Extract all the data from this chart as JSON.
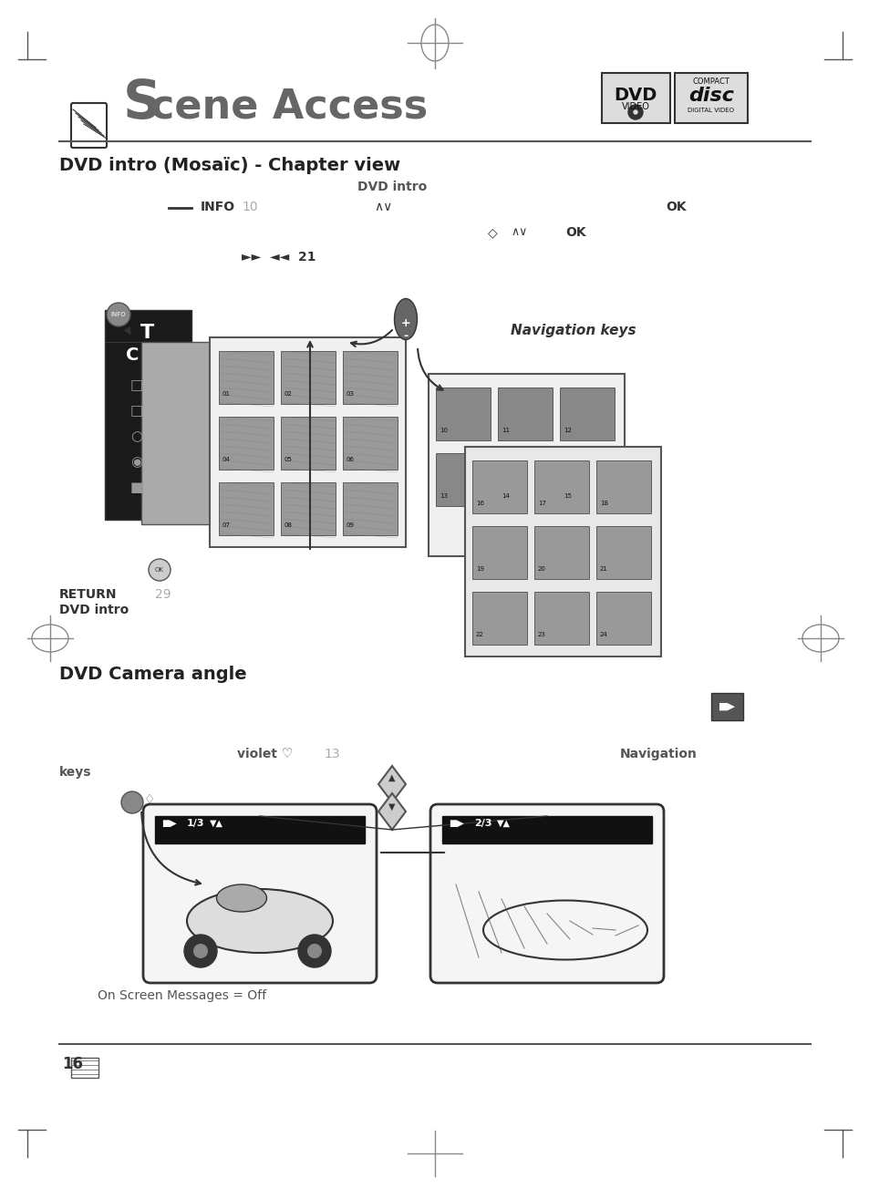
{
  "bg_color": "#ffffff",
  "page_width": 9.54,
  "page_height": 13.04,
  "title_main": "Scene Access",
  "title_s": "S",
  "section1_title": "DVD intro (Mosaïc) - Chapter view",
  "section2_title": "DVD Camera angle",
  "dvd_intro_label": "DVD intro",
  "info_line1": "INFO     10",
  "ok_line1": "OK",
  "arrows_up_down": "∧∨",
  "ok_line2": "OK",
  "nav_arrows": "►►   ◄◄  21",
  "nav_keys_label": "Navigation keys",
  "return_label": "RETURN      29\nDVD intro",
  "violet_label": "violet ♡     13",
  "navigation_label": "Navigation",
  "keys_label": "keys",
  "screen_msg_label": "On Screen Messages = Off",
  "page_num": "16",
  "gray_dark": "#404040",
  "gray_mid": "#888888",
  "gray_light": "#cccccc",
  "black": "#000000",
  "white": "#ffffff"
}
